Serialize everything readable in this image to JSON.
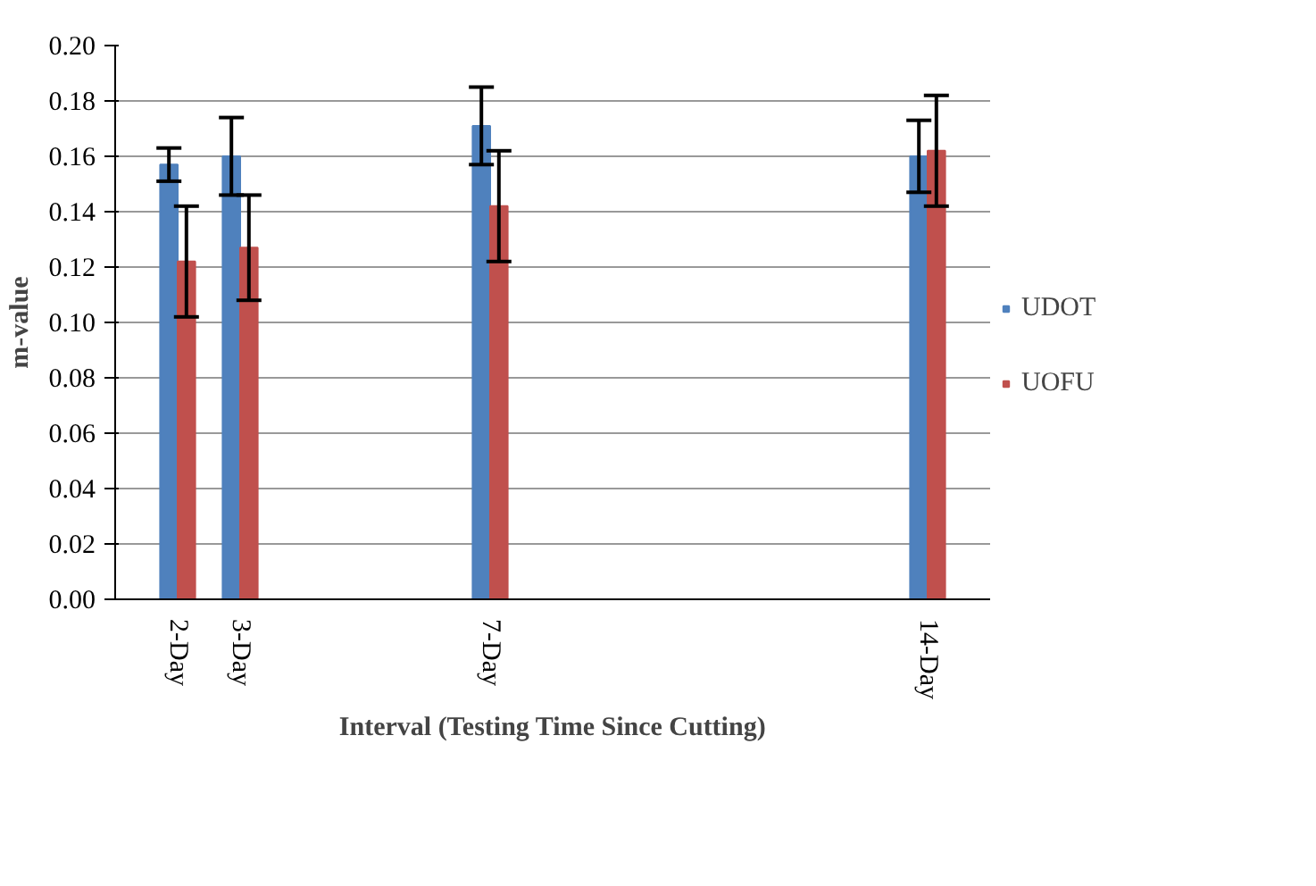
{
  "chart_data": {
    "type": "bar",
    "xlabel": "Interval (Testing Time Since Cutting)",
    "ylabel": "m-value",
    "x": [
      2,
      3,
      7,
      14
    ],
    "xlim": [
      1,
      15
    ],
    "xticks": [
      {
        "value": 2,
        "label": "2-Day"
      },
      {
        "value": 3,
        "label": "3-Day"
      },
      {
        "value": 7,
        "label": "7-Day"
      },
      {
        "value": 14,
        "label": "14-Day"
      }
    ],
    "ylim": [
      0,
      0.2
    ],
    "yticks": [
      {
        "value": 0,
        "label": "0.00"
      },
      {
        "value": 0.02,
        "label": "0.02"
      },
      {
        "value": 0.04,
        "label": "0.04"
      },
      {
        "value": 0.06,
        "label": "0.06"
      },
      {
        "value": 0.08,
        "label": "0.08"
      },
      {
        "value": 0.1,
        "label": "0.10"
      },
      {
        "value": 0.12,
        "label": "0.12"
      },
      {
        "value": 0.14,
        "label": "0.14"
      },
      {
        "value": 0.16,
        "label": "0.16"
      },
      {
        "value": 0.18,
        "label": "0.18"
      },
      {
        "value": 0.2,
        "label": "0.20"
      }
    ],
    "series": [
      {
        "name": "UDOT",
        "color": "#4f81bd",
        "values": [
          0.157,
          0.16,
          0.171,
          0.16
        ],
        "errors": [
          0.006,
          0.014,
          0.014,
          0.013
        ]
      },
      {
        "name": "UOFU",
        "color": "#c0504d",
        "values": [
          0.122,
          0.127,
          0.142,
          0.162
        ],
        "errors": [
          0.02,
          0.019,
          0.02,
          0.02
        ]
      }
    ],
    "grid": "y",
    "legend": "right"
  }
}
